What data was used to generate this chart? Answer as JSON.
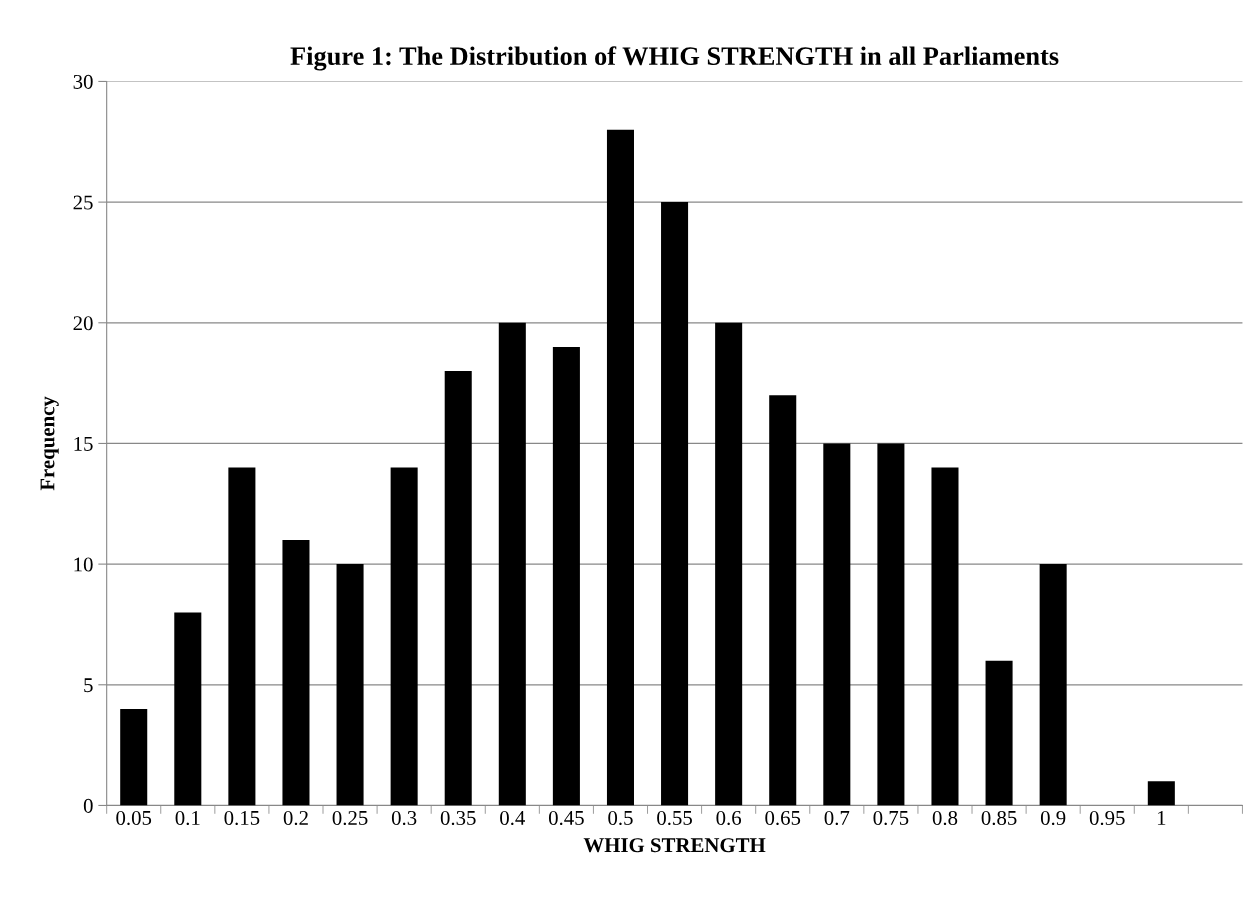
{
  "chart_data": {
    "type": "bar",
    "title": "Figure 1: The Distribution of WHIG STRENGTH in all Parliaments",
    "xlabel": "WHIG STRENGTH",
    "ylabel": "Frequency",
    "categories": [
      "0.05",
      "0.1",
      "0.15",
      "0.2",
      "0.25",
      "0.3",
      "0.35",
      "0.4",
      "0.45",
      "0.5",
      "0.55",
      "0.6",
      "0.65",
      "0.7",
      "0.75",
      "0.8",
      "0.85",
      "0.9",
      "0.95",
      "1",
      null
    ],
    "values": [
      4,
      8,
      14,
      11,
      10,
      14,
      18,
      20,
      19,
      28,
      25,
      20,
      17,
      15,
      15,
      14,
      6,
      10,
      0,
      1,
      null
    ],
    "color": "#000000",
    "ylim": [
      0,
      30
    ],
    "yticks": [
      0,
      5,
      10,
      15,
      20,
      25,
      30
    ],
    "grid": "y"
  }
}
